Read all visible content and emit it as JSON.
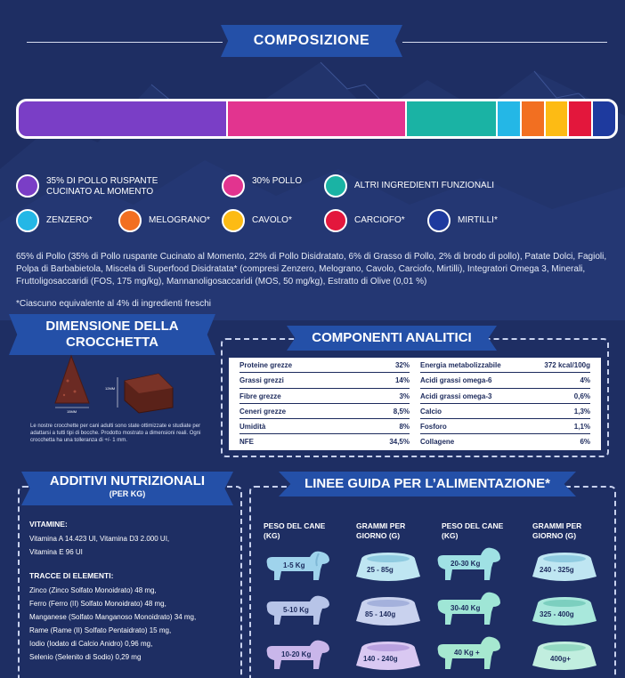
{
  "header": {
    "title": "COMPOSIZIONE"
  },
  "colors": {
    "background": "#1e2e63",
    "ribbon": "#2450a8",
    "purple": "#7a3ec6",
    "pink": "#e2348f",
    "teal": "#1ab3a4",
    "cyan": "#24b7e6",
    "orange": "#f26f21",
    "yellow": "#fdbb14",
    "red": "#e3173c",
    "navy": "#1e3a9e"
  },
  "composition": {
    "legend": [
      {
        "label": "35% DI POLLO RUSPANTE CUCINATO AL MOMENTO",
        "color": "#7a3ec6"
      },
      {
        "label": "30% POLLO",
        "color": "#e2348f"
      },
      {
        "label": "ALTRI INGREDIENTI FUNZIONALI",
        "color": "#1ab3a4"
      },
      {
        "label": "ZENZERO*",
        "color": "#24b7e6"
      },
      {
        "label": "MELOGRANO*",
        "color": "#f26f21"
      },
      {
        "label": "CAVOLO*",
        "color": "#fdbb14"
      },
      {
        "label": "CARCIOFO*",
        "color": "#e3173c"
      },
      {
        "label": "MIRTILLI*",
        "color": "#1e3a9e"
      }
    ],
    "ingredients": "65% di Pollo (35% di Pollo ruspante Cucinato al Momento, 22% di Pollo Disidratato, 6% di Grasso di Pollo, 2% di brodo di pollo), Patate Dolci, Fagioli, Polpa di Barbabietola, Miscela di Superfood Disidratata* (compresi Zenzero, Melograno, Cavolo, Carciofo, Mirtilli), Integratori Omega 3, Minerali, Fruttoligosaccaridi (FOS, 175 mg/kg),   Mannanoligosaccaridi (MOS, 50 mg/kg), Estratto di Olive (0,01 %)",
    "footnote": "*Ciascuno equivalente al 4% di ingredienti freschi"
  },
  "kibble": {
    "title": "DIMENSIONE DELLA CROCCHETTA",
    "dim_height": "12MM",
    "dim_width": "15MM",
    "note": "Le nostre crocchette per cani adulti sono state ottimizzate e studiate per adattarsi a tutti tipi di bocche.  Prodotto mostrato a dimensioni reali. Ogni crocchetta ha una tolleranza di +/- 1 mm."
  },
  "analytic": {
    "title": "COMPONENTI ANALITICI",
    "left": [
      {
        "name": "Proteine grezze",
        "value": "32%"
      },
      {
        "name": "Grassi grezzi",
        "value": "14%"
      },
      {
        "name": "Fibre grezze",
        "value": "3%"
      },
      {
        "name": "Ceneri grezze",
        "value": "8,5%"
      },
      {
        "name": "Umidità",
        "value": "8%"
      },
      {
        "name": "NFE",
        "value": "34,5%"
      }
    ],
    "right": [
      {
        "name": "Energia metabolizzabile",
        "value": "372 kcal/100g"
      },
      {
        "name": "Acidi grassi omega-6",
        "value": "4%"
      },
      {
        "name": "Acidi grassi omega-3",
        "value": "0,6%"
      },
      {
        "name": "Calcio",
        "value": "1,3%"
      },
      {
        "name": "Fosforo",
        "value": "1,1%"
      },
      {
        "name": "Collagene",
        "value": "6%"
      }
    ]
  },
  "additives": {
    "title": "ADDITIVI NUTRIZIONALI",
    "subtitle": "(PER KG)",
    "vitamins_heading": "VITAMINE:",
    "vitamins_line1": "Vitamina A 14.423 UI, Vitamina D3 2.000 UI,",
    "vitamins_line2": "Vitamina E 96 UI",
    "trace_heading": "TRACCE DI ELEMENTI:",
    "trace": [
      "Zinco (Zinco Solfato Monoidrato) 48 mg,",
      "Ferro (Ferro (II) Solfato Monoidrato) 48 mg,",
      "Manganese (Solfato Manganoso Monoidrato) 34 mg,",
      "Rame (Rame (II) Solfato Pentaidrato) 15 mg,",
      "Iodio (Iodato di Calcio Anidro) 0,96 mg,",
      "Selenio (Selenito di Sodio) 0,29 mg"
    ]
  },
  "feeding": {
    "title": "LINEE GUIDA PER L’ALIMENTAZIONE*",
    "col_weight": "PESO DEL CANE (KG)",
    "col_grams": "GRAMMI PER GIORNO (G)",
    "left": [
      {
        "weight": "1-5 Kg",
        "grams": "25 - 85g"
      },
      {
        "weight": "5-10 Kg",
        "grams": "85 - 140g"
      },
      {
        "weight": "10-20 Kg",
        "grams": "140 - 240g"
      }
    ],
    "right": [
      {
        "weight": "20-30 Kg",
        "grams": "240 - 325g"
      },
      {
        "weight": "30-40 Kg",
        "grams": "325 - 400g"
      },
      {
        "weight": "40 Kg +",
        "grams": "400g+"
      }
    ]
  }
}
